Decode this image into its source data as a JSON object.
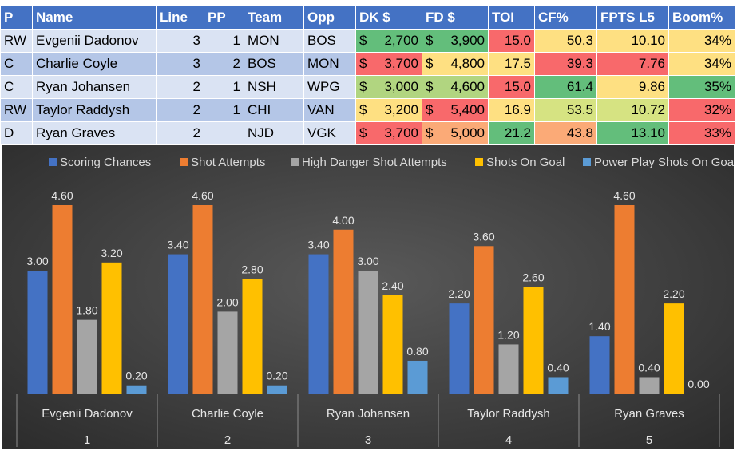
{
  "table": {
    "headers": [
      "P",
      "Name",
      "Line",
      "PP",
      "Team",
      "Opp",
      "DK $",
      "FD $",
      "TOI",
      "CF%",
      "FPTS L5",
      "Boom%"
    ],
    "rows": [
      {
        "p": "RW",
        "name": "Evgenii Dadonov",
        "line": "3",
        "pp": "1",
        "team": "MON",
        "opp": "BOS",
        "dk": "2,700",
        "fd": "3,900",
        "toi": "15.0",
        "cf": "50.3",
        "fpts": "10.10",
        "boom": "34%",
        "colors": {
          "dk": "#63be7b",
          "fd": "#63be7b",
          "toi": "#f8696b",
          "cf": "#fee082",
          "fpts": "#fee082",
          "boom": "#fee082"
        }
      },
      {
        "p": "C",
        "name": "Charlie Coyle",
        "line": "3",
        "pp": "2",
        "team": "BOS",
        "opp": "MON",
        "dk": "3,700",
        "fd": "4,800",
        "toi": "17.5",
        "cf": "39.3",
        "fpts": "7.76",
        "boom": "34%",
        "colors": {
          "dk": "#f8696b",
          "fd": "#fee082",
          "toi": "#fee082",
          "cf": "#f8696b",
          "fpts": "#f8696b",
          "boom": "#fee082"
        }
      },
      {
        "p": "C",
        "name": "Ryan Johansen",
        "line": "2",
        "pp": "1",
        "team": "NSH",
        "opp": "WPG",
        "dk": "3,000",
        "fd": "4,600",
        "toi": "15.0",
        "cf": "61.4",
        "fpts": "9.86",
        "boom": "35%",
        "colors": {
          "dk": "#b1d580",
          "fd": "#b1d580",
          "toi": "#f8696b",
          "cf": "#63be7b",
          "fpts": "#fee082",
          "boom": "#63be7b"
        }
      },
      {
        "p": "RW",
        "name": "Taylor Raddysh",
        "line": "2",
        "pp": "1",
        "team": "CHI",
        "opp": "VAN",
        "dk": "3,200",
        "fd": "5,400",
        "toi": "16.9",
        "cf": "53.5",
        "fpts": "10.72",
        "boom": "32%",
        "colors": {
          "dk": "#fee082",
          "fd": "#f8696b",
          "toi": "#fee082",
          "cf": "#d6e382",
          "fpts": "#d6e382",
          "boom": "#f8696b"
        }
      },
      {
        "p": "D",
        "name": "Ryan Graves",
        "line": "2",
        "pp": "",
        "team": "NJD",
        "opp": "VGK",
        "dk": "3,700",
        "fd": "5,000",
        "toi": "21.2",
        "cf": "43.8",
        "fpts": "13.10",
        "boom": "33%",
        "colors": {
          "dk": "#f8696b",
          "fd": "#fbaa77",
          "toi": "#63be7b",
          "cf": "#fbaa77",
          "fpts": "#63be7b",
          "boom": "#f8696b"
        }
      }
    ],
    "currency_symbol": "$"
  },
  "chart_data": {
    "type": "bar",
    "title": "",
    "xlabel": "",
    "ylabel": "",
    "ylim": [
      0,
      4.6
    ],
    "legend_position": "top",
    "grid": false,
    "categories": [
      "Evgenii Dadonov",
      "Charlie Coyle",
      "Ryan Johansen",
      "Taylor Raddysh",
      "Ryan Graves"
    ],
    "category_indices": [
      "1",
      "2",
      "3",
      "4",
      "5"
    ],
    "series": [
      {
        "name": "Scoring Chances",
        "color": "#4472c4",
        "values": [
          3.0,
          3.4,
          3.4,
          2.2,
          1.4
        ]
      },
      {
        "name": "Shot Attempts",
        "color": "#ed7d31",
        "values": [
          4.6,
          4.6,
          4.0,
          3.6,
          4.6
        ]
      },
      {
        "name": "High Danger Shot Attempts",
        "color": "#a5a5a5",
        "values": [
          1.8,
          2.0,
          3.0,
          1.2,
          0.4
        ]
      },
      {
        "name": "Shots On Goal",
        "color": "#ffc000",
        "values": [
          3.2,
          2.8,
          2.4,
          2.6,
          2.2
        ]
      },
      {
        "name": "Power Play Shots On Goal",
        "color": "#5b9bd5",
        "values": [
          0.2,
          0.2,
          0.8,
          0.4,
          0.0
        ]
      }
    ]
  }
}
